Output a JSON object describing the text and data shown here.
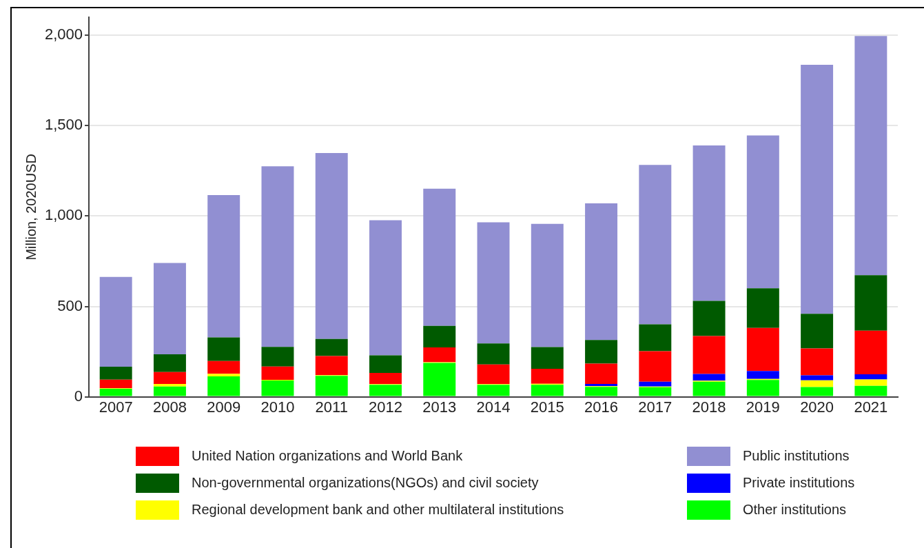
{
  "chart_data": {
    "type": "bar",
    "stacked": true,
    "ylabel": "Million, 2020USD",
    "categories": [
      "2007",
      "2008",
      "2009",
      "2010",
      "2011",
      "2012",
      "2013",
      "2014",
      "2015",
      "2016",
      "2017",
      "2018",
      "2019",
      "2020",
      "2021"
    ],
    "series": [
      {
        "name": "Other institutions",
        "color": "#00ff00",
        "values": [
          44,
          57,
          113,
          90,
          116,
          66,
          187,
          66,
          66,
          55,
          53,
          83,
          93,
          54,
          60
        ]
      },
      {
        "name": "Regional development bank and other multilateral institutions",
        "color": "#ffff00",
        "values": [
          3,
          14,
          14,
          4,
          4,
          4,
          4,
          4,
          6,
          4,
          4,
          6,
          6,
          37,
          36
        ]
      },
      {
        "name": "Private institutions",
        "color": "#0000ff",
        "values": [
          0,
          0,
          0,
          0,
          0,
          0,
          0,
          0,
          0,
          12,
          26,
          37,
          43,
          28,
          28
        ]
      },
      {
        "name": "United Nation organizations and World Bank",
        "color": "#ff0000",
        "values": [
          48,
          66,
          71,
          73,
          105,
          62,
          82,
          109,
          83,
          112,
          169,
          210,
          239,
          148,
          242
        ]
      },
      {
        "name": "Non-governmental organizations(NGOs) and civil society",
        "color": "#005a00",
        "values": [
          71,
          98,
          130,
          109,
          95,
          97,
          119,
          116,
          120,
          131,
          149,
          195,
          219,
          192,
          307
        ]
      },
      {
        "name": "Public institutions",
        "color": "#918fd2",
        "values": [
          497,
          505,
          788,
          999,
          1029,
          748,
          759,
          670,
          682,
          756,
          882,
          860,
          846,
          1378,
          1323
        ]
      }
    ],
    "ylim": [
      0,
      2100
    ],
    "yticks": [
      0,
      {
        "value": 500,
        "label": "500"
      },
      {
        "value": 1000,
        "label": "1,000"
      },
      {
        "value": 1500,
        "label": "1,500"
      },
      {
        "value": 2000,
        "label": "2,000"
      }
    ],
    "grid": "y",
    "legend": "bottom"
  }
}
